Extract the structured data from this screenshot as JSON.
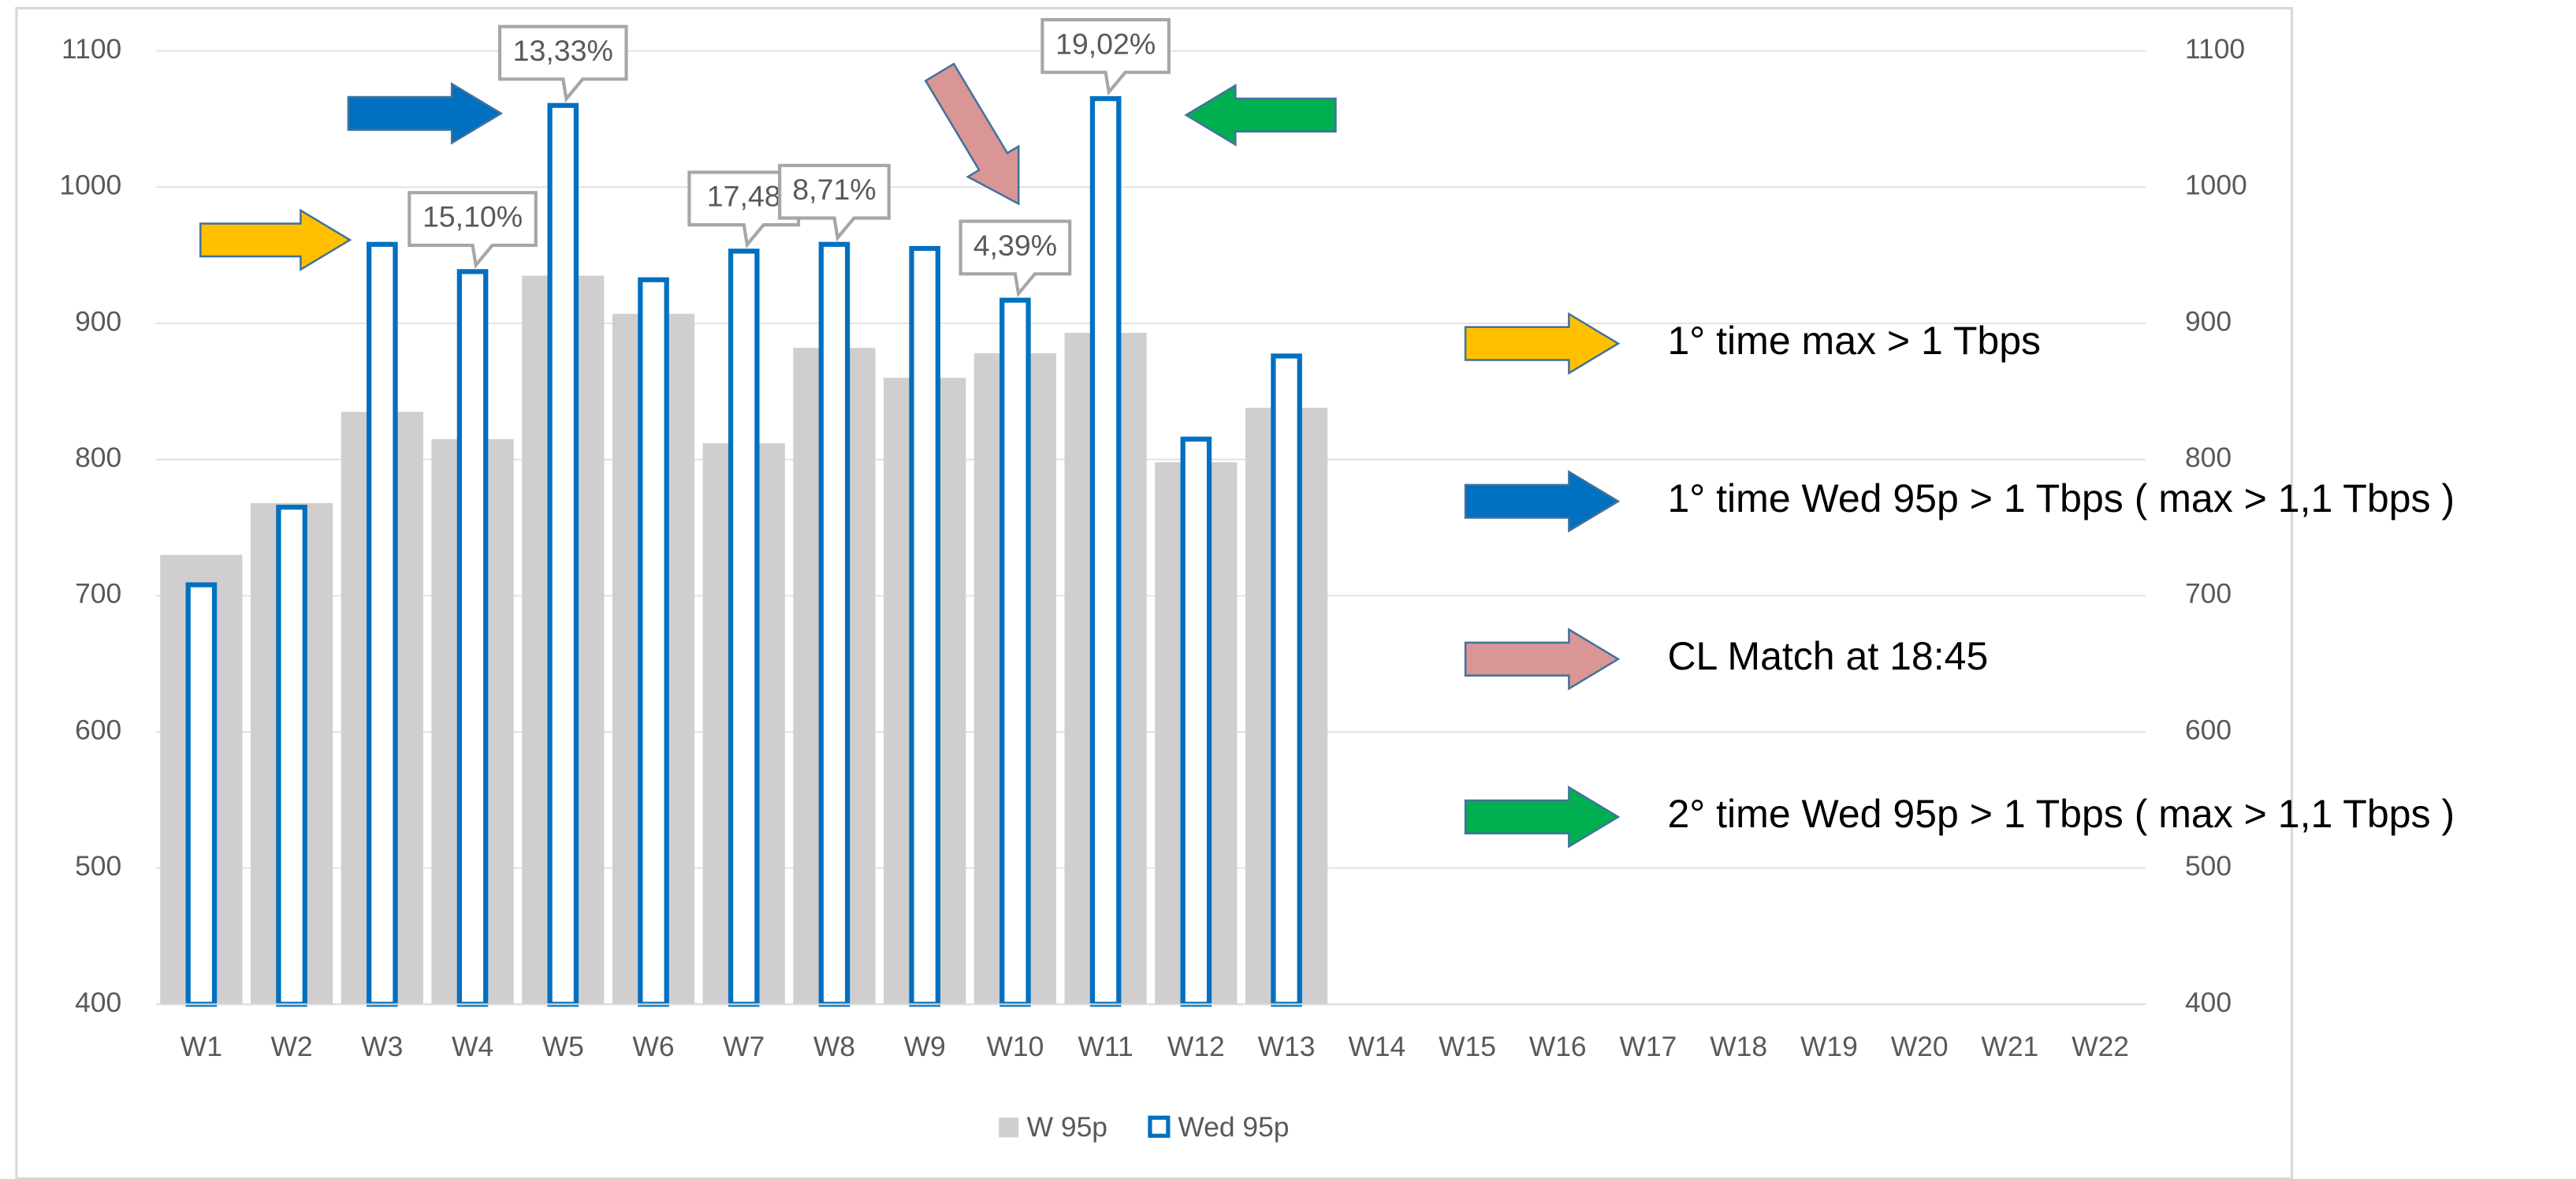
{
  "chart_data": {
    "type": "bar",
    "categories": [
      "W1",
      "W2",
      "W3",
      "W4",
      "W5",
      "W6",
      "W7",
      "W8",
      "W9",
      "W10",
      "W11",
      "W12",
      "W13",
      "W14",
      "W15",
      "W16",
      "W17",
      "W18",
      "W19",
      "W20",
      "W21",
      "W22"
    ],
    "series": [
      {
        "name": "W 95p",
        "color": "#d0cece",
        "style": "filled",
        "values": [
          730,
          768,
          835,
          815,
          935,
          907,
          812,
          882,
          860,
          878,
          893,
          798,
          838,
          null,
          null,
          null,
          null,
          null,
          null,
          null,
          null,
          null
        ]
      },
      {
        "name": "Wed 95p",
        "color": "#0070c0",
        "style": "outline",
        "values": [
          708,
          765,
          958,
          938,
          1060,
          932,
          953,
          958,
          955,
          917,
          1065,
          815,
          876,
          null,
          null,
          null,
          null,
          null,
          null,
          null,
          null,
          null
        ]
      }
    ],
    "ylim": [
      400,
      1100
    ],
    "yticks": [
      400,
      500,
      600,
      700,
      800,
      900,
      1000,
      1100
    ],
    "y2lim": [
      400,
      1100
    ],
    "y2ticks": [
      400,
      500,
      600,
      700,
      800,
      900,
      1000,
      1100
    ],
    "grid": true,
    "legend": "bottom",
    "annotations": [
      {
        "text": "15,10%",
        "category": "W4"
      },
      {
        "text": "13,33%",
        "category": "W5"
      },
      {
        "text": "17,48",
        "category": "W7"
      },
      {
        "text": "8,71%",
        "category": "W8"
      },
      {
        "text": "4,39%",
        "category": "W10"
      },
      {
        "text": "19,02%",
        "category": "W11"
      }
    ],
    "notes": [
      {
        "text": "1° time max > 1 Tbps",
        "color": "#ffc000"
      },
      {
        "text": "1° time Wed 95p > 1 Tbps ( max > 1,1 Tbps )",
        "color": "#0070c0"
      },
      {
        "text": "CL Match at 18:45",
        "color": "#d99694"
      },
      {
        "text": "2° time Wed 95p > 1 Tbps ( max > 1,1 Tbps )",
        "color": "#00b050"
      }
    ]
  }
}
